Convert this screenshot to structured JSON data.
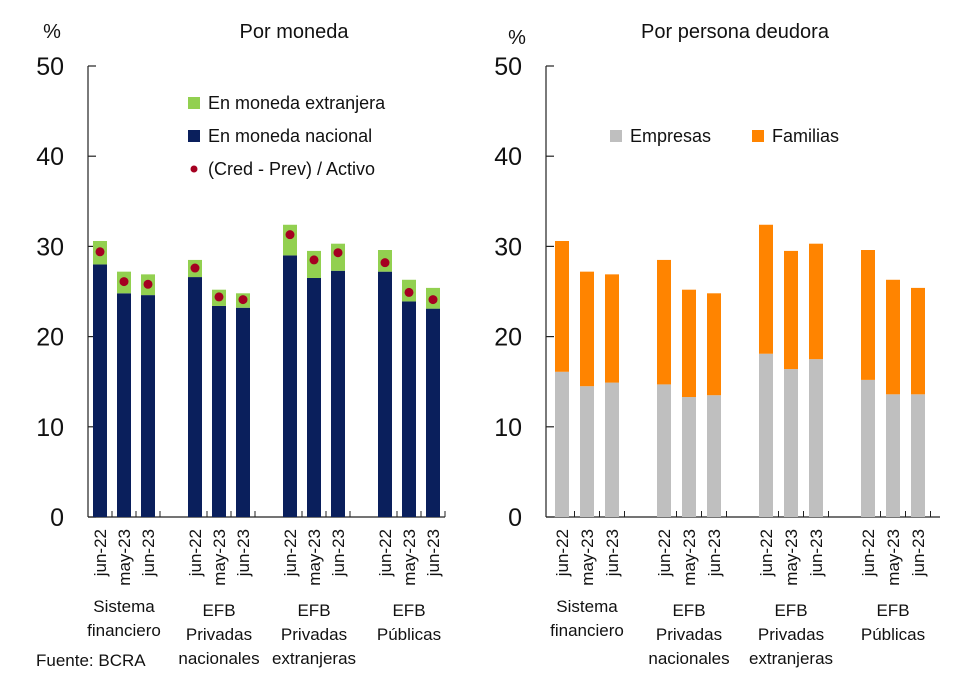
{
  "source": "Fuente: BCRA",
  "chart_data": [
    {
      "type": "bar",
      "stacked": true,
      "title": "Por moneda",
      "ylabel": "%",
      "ylim": [
        0,
        50
      ],
      "yticks": [
        0,
        10,
        20,
        30,
        40,
        50
      ],
      "groups": [
        {
          "label": [
            "Sistema",
            "financiero"
          ],
          "categories": [
            "jun-22",
            "may-23",
            "jun-23"
          ]
        },
        {
          "label": [
            "EFB",
            "Privadas",
            "nacionales"
          ],
          "categories": [
            "jun-22",
            "may-23",
            "jun-23"
          ]
        },
        {
          "label": [
            "EFB",
            "Privadas",
            "extranjeras"
          ],
          "categories": [
            "jun-22",
            "may-23",
            "jun-23"
          ]
        },
        {
          "label": [
            "EFB",
            "Públicas"
          ],
          "categories": [
            "jun-22",
            "may-23",
            "jun-23"
          ]
        }
      ],
      "series": [
        {
          "name": "En moneda nacional",
          "kind": "bar",
          "color": "#0a1f5c",
          "values": [
            28.0,
            24.8,
            24.6,
            26.6,
            23.4,
            23.2,
            29.0,
            26.5,
            27.3,
            27.2,
            23.9,
            23.1
          ]
        },
        {
          "name": "En moneda extranjera",
          "kind": "bar",
          "color": "#92d050",
          "values": [
            2.6,
            2.4,
            2.3,
            1.9,
            1.8,
            1.6,
            3.4,
            3.0,
            3.0,
            2.4,
            2.4,
            2.3
          ]
        },
        {
          "name": "(Cred - Prev) / Activo",
          "kind": "dot",
          "color": "#a50021",
          "values": [
            29.4,
            26.1,
            25.8,
            27.6,
            24.4,
            24.1,
            31.3,
            28.5,
            29.3,
            28.2,
            24.9,
            24.1
          ]
        }
      ],
      "legend": {
        "placement": "top-center",
        "order": [
          "En moneda extranjera",
          "En moneda nacional",
          "(Cred - Prev) / Activo"
        ]
      }
    },
    {
      "type": "bar",
      "stacked": true,
      "title": "Por persona deudora",
      "ylabel": "%",
      "ylim": [
        0,
        50
      ],
      "yticks": [
        0,
        10,
        20,
        30,
        40,
        50
      ],
      "groups": [
        {
          "label": [
            "Sistema",
            "financiero"
          ],
          "categories": [
            "jun-22",
            "may-23",
            "jun-23"
          ]
        },
        {
          "label": [
            "EFB",
            "Privadas",
            "nacionales"
          ],
          "categories": [
            "jun-22",
            "may-23",
            "jun-23"
          ]
        },
        {
          "label": [
            "EFB",
            "Privadas",
            "extranjeras"
          ],
          "categories": [
            "jun-22",
            "may-23",
            "jun-23"
          ]
        },
        {
          "label": [
            "EFB",
            "Públicas"
          ],
          "categories": [
            "jun-22",
            "may-23",
            "jun-23"
          ]
        }
      ],
      "series": [
        {
          "name": "Empresas",
          "kind": "bar",
          "color": "#bfbfbf",
          "values": [
            16.1,
            14.5,
            14.9,
            14.7,
            13.3,
            13.5,
            18.1,
            16.4,
            17.5,
            15.2,
            13.6,
            13.6
          ]
        },
        {
          "name": "Familias",
          "kind": "bar",
          "color": "#ff8400",
          "values": [
            14.5,
            12.7,
            12.0,
            13.8,
            11.9,
            11.3,
            14.3,
            13.1,
            12.8,
            14.4,
            12.7,
            11.8
          ]
        }
      ],
      "legend": {
        "placement": "top-center",
        "order": [
          "Empresas",
          "Familias"
        ]
      }
    }
  ]
}
